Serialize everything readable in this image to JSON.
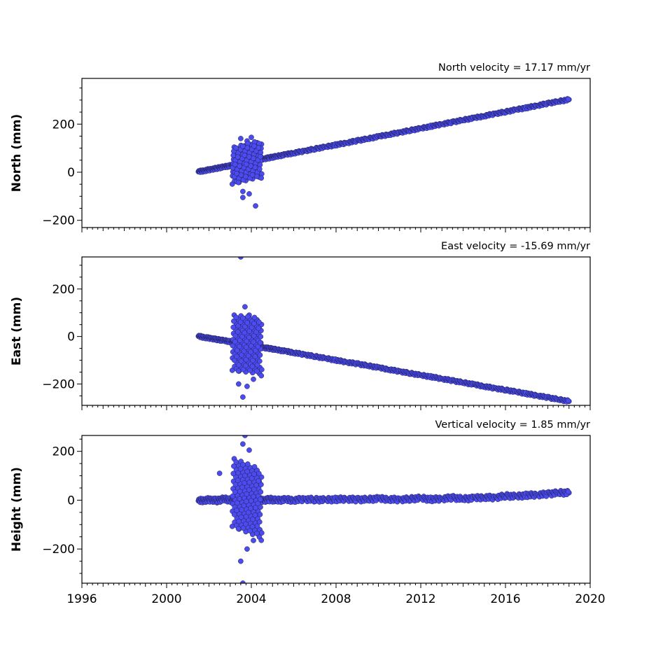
{
  "chart_data": [
    {
      "type": "scatter",
      "title": "North velocity = 17.17 mm/yr",
      "xlabel": "",
      "ylabel": "North (mm)",
      "xlim": [
        1996,
        2020
      ],
      "ylim": [
        -230,
        390
      ],
      "yticks": [
        -200,
        0,
        200
      ],
      "ytick_labels": [
        "−200",
        "0",
        "200"
      ],
      "xticks": [
        1996,
        2000,
        2004,
        2008,
        2012,
        2016,
        2020
      ],
      "xtick_labels": [],
      "grid": false,
      "series": [
        {
          "x": [
            2001.5,
            2001.8,
            2002.1,
            2002.4,
            2002.7,
            2003.0,
            2003.3,
            2003.5,
            2003.6,
            2003.7,
            2003.8,
            2003.9,
            2004.0,
            2004.1,
            2004.3,
            2004.6,
            2004.9,
            2005.2,
            2005.6,
            2006.0,
            2006.5,
            2007.0,
            2007.5,
            2008.0,
            2008.5,
            2009.0,
            2009.5,
            2010.0,
            2010.5,
            2011.0,
            2011.5,
            2012.0,
            2012.5,
            2013.0,
            2013.5,
            2014.0,
            2014.5,
            2015.0,
            2015.5,
            2016.0,
            2016.5,
            2017.0,
            2017.5,
            2018.0,
            2018.5,
            2019.0,
            2003.5,
            2003.6,
            2003.8,
            2004.0,
            2003.7,
            2003.9,
            2003.6,
            2004.2,
            2003.4
          ],
          "y": [
            2,
            7,
            12,
            17,
            22,
            27,
            33,
            36,
            38,
            40,
            41,
            43,
            45,
            47,
            51,
            56,
            61,
            66,
            73,
            80,
            88,
            97,
            105,
            114,
            122,
            131,
            139,
            148,
            157,
            165,
            174,
            182,
            191,
            200,
            208,
            217,
            225,
            234,
            243,
            251,
            260,
            268,
            277,
            286,
            294,
            302,
            140,
            -105,
            130,
            145,
            110,
            -90,
            -80,
            -140,
            -30
          ]
        }
      ]
    },
    {
      "type": "scatter",
      "title": "East velocity = -15.69 mm/yr",
      "xlabel": "",
      "ylabel": "East (mm)",
      "xlim": [
        1996,
        2020
      ],
      "ylim": [
        -290,
        335
      ],
      "yticks": [
        -200,
        0,
        200
      ],
      "ytick_labels": [
        "−200",
        "0",
        "200"
      ],
      "xticks": [
        1996,
        2000,
        2004,
        2008,
        2012,
        2016,
        2020
      ],
      "xtick_labels": [],
      "grid": false,
      "series": [
        {
          "x": [
            2001.5,
            2001.8,
            2002.1,
            2002.4,
            2002.7,
            2003.0,
            2003.3,
            2003.5,
            2003.6,
            2003.7,
            2003.8,
            2003.9,
            2004.0,
            2004.1,
            2004.3,
            2004.6,
            2004.9,
            2005.2,
            2005.6,
            2006.0,
            2006.5,
            2007.0,
            2007.5,
            2008.0,
            2008.5,
            2009.0,
            2009.5,
            2010.0,
            2010.5,
            2011.0,
            2011.5,
            2012.0,
            2012.5,
            2013.0,
            2013.5,
            2014.0,
            2014.5,
            2015.0,
            2015.5,
            2016.0,
            2016.5,
            2017.0,
            2017.5,
            2018.0,
            2018.5,
            2019.0,
            2003.5,
            2003.7,
            2003.9,
            2003.6,
            2003.8,
            2004.1,
            2003.4,
            2003.6
          ],
          "y": [
            1,
            -4,
            -8,
            -13,
            -17,
            -22,
            -26,
            -29,
            -31,
            -33,
            -34,
            -36,
            -37,
            -39,
            -42,
            -47,
            -51,
            -56,
            -62,
            -68,
            -76,
            -84,
            -92,
            -100,
            -108,
            -115,
            -123,
            -131,
            -139,
            -147,
            -155,
            -163,
            -170,
            -178,
            -186,
            -194,
            -202,
            -210,
            -218,
            -225,
            -233,
            -241,
            -249,
            -257,
            -265,
            -273,
            335,
            125,
            90,
            -255,
            -210,
            -180,
            -200,
            40
          ]
        }
      ]
    },
    {
      "type": "scatter",
      "title": "Vertical velocity = 1.85 mm/yr",
      "xlabel": "",
      "ylabel": "Height (mm)",
      "xlim": [
        1996,
        2020
      ],
      "ylim": [
        -340,
        265
      ],
      "yticks": [
        -200,
        0,
        200
      ],
      "ytick_labels": [
        "−200",
        "0",
        "200"
      ],
      "xticks": [
        1996,
        2000,
        2004,
        2008,
        2012,
        2016,
        2020
      ],
      "xtick_labels": [
        "1996",
        "2000",
        "2004",
        "2008",
        "2012",
        "2016",
        "2020"
      ],
      "grid": false,
      "series": [
        {
          "x": [
            2001.5,
            2001.8,
            2002.1,
            2002.4,
            2002.7,
            2003.0,
            2003.3,
            2003.5,
            2003.6,
            2003.7,
            2003.8,
            2003.9,
            2004.0,
            2004.1,
            2004.3,
            2004.6,
            2004.9,
            2005.2,
            2005.6,
            2006.0,
            2006.5,
            2007.0,
            2007.5,
            2008.0,
            2008.5,
            2009.0,
            2009.5,
            2010.0,
            2010.5,
            2011.0,
            2011.5,
            2012.0,
            2012.5,
            2013.0,
            2013.5,
            2014.0,
            2014.5,
            2015.0,
            2015.5,
            2016.0,
            2016.5,
            2017.0,
            2017.5,
            2018.0,
            2018.5,
            2019.0,
            2003.7,
            2003.6,
            2003.5,
            2004.1,
            2003.9,
            2002.5,
            2003.8,
            2003.6
          ],
          "y": [
            -3,
            0,
            2,
            -2,
            5,
            0,
            3,
            20,
            -10,
            15,
            -20,
            10,
            5,
            -5,
            2,
            0,
            3,
            -1,
            2,
            0,
            4,
            2,
            1,
            3,
            5,
            2,
            3,
            6,
            4,
            2,
            5,
            8,
            3,
            6,
            10,
            5,
            8,
            12,
            10,
            18,
            15,
            20,
            22,
            25,
            30,
            30,
            265,
            230,
            -250,
            -165,
            205,
            110,
            -200,
            -340
          ]
        }
      ]
    }
  ]
}
